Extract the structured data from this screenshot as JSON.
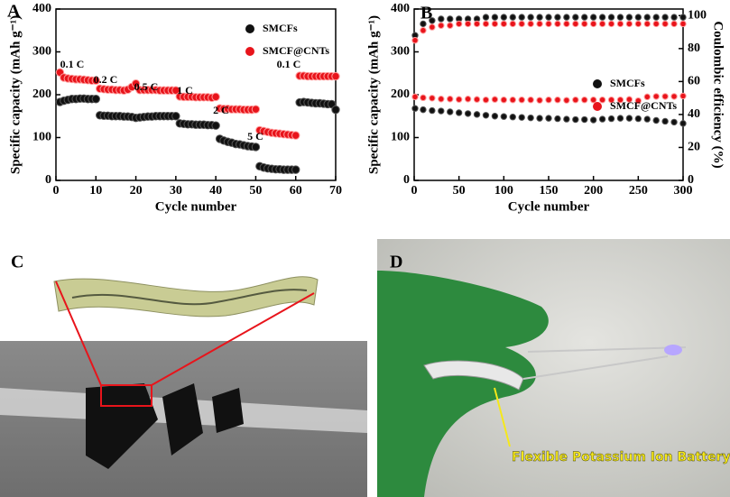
{
  "panel_labels": [
    "A",
    "B",
    "C",
    "D"
  ],
  "photo_caption": "Flexible Potassium Ion Battery",
  "chart_data": [
    {
      "type": "scatter",
      "xlabel": "Cycle number",
      "ylabel": "Specific capacity (mAh g⁻¹)",
      "xlim": [
        0,
        70
      ],
      "xticks": [
        0,
        10,
        20,
        30,
        40,
        50,
        60,
        70
      ],
      "ylim": [
        0,
        400
      ],
      "yticks": [
        0,
        100,
        200,
        300,
        400
      ],
      "legend": "upper right",
      "annotations": [
        "0.1 C",
        "0.2 C",
        "0.5 C",
        "1 C",
        "2 C",
        "5 C",
        "0.1 C"
      ],
      "x": [
        1,
        2,
        3,
        4,
        5,
        6,
        7,
        8,
        9,
        10,
        11,
        12,
        13,
        14,
        15,
        16,
        17,
        18,
        19,
        20,
        21,
        22,
        23,
        24,
        25,
        26,
        27,
        28,
        29,
        30,
        31,
        32,
        33,
        34,
        35,
        36,
        37,
        38,
        39,
        40,
        41,
        42,
        43,
        44,
        45,
        46,
        47,
        48,
        49,
        50,
        51,
        52,
        53,
        54,
        55,
        56,
        57,
        58,
        59,
        60,
        61,
        62,
        63,
        64,
        65,
        66,
        67,
        68,
        69,
        70
      ],
      "series": [
        {
          "name": "SMCFs",
          "color": "#111111",
          "values": [
            183,
            186,
            188,
            190,
            190,
            191,
            191,
            190,
            190,
            190,
            152,
            151,
            151,
            150,
            150,
            150,
            149,
            149,
            148,
            146,
            147,
            148,
            149,
            149,
            150,
            150,
            150,
            150,
            150,
            150,
            133,
            132,
            131,
            131,
            130,
            130,
            130,
            129,
            129,
            128,
            97,
            93,
            90,
            88,
            85,
            84,
            82,
            80,
            79,
            78,
            33,
            30,
            28,
            27,
            26,
            26,
            25,
            25,
            25,
            25,
            182,
            183,
            182,
            181,
            180,
            180,
            179,
            178,
            178,
            165
          ]
        },
        {
          "name": "SMCF@CNTs",
          "color": "#e8141b",
          "values": [
            252,
            240,
            238,
            237,
            236,
            236,
            235,
            234,
            233,
            233,
            214,
            213,
            212,
            212,
            211,
            211,
            210,
            212,
            218,
            226,
            211,
            211,
            211,
            211,
            211,
            210,
            210,
            210,
            210,
            210,
            196,
            195,
            195,
            195,
            194,
            194,
            194,
            194,
            193,
            195,
            168,
            167,
            167,
            166,
            166,
            166,
            165,
            165,
            165,
            166,
            117,
            115,
            113,
            111,
            110,
            109,
            108,
            107,
            106,
            105,
            244,
            244,
            243,
            243,
            243,
            243,
            243,
            243,
            243,
            243
          ]
        }
      ]
    },
    {
      "type": "scatter",
      "xlabel": "Cycle number",
      "ylabel": "Specific capacity (mAh g⁻¹)",
      "y2label": "Coulombic efficiency (%)",
      "xlim": [
        0,
        300
      ],
      "xticks": [
        0,
        50,
        100,
        150,
        200,
        250,
        300
      ],
      "ylim": [
        0,
        400
      ],
      "yticks": [
        0,
        100,
        200,
        300,
        400
      ],
      "y2lim": [
        0,
        104
      ],
      "y2ticks": [
        0,
        20,
        40,
        60,
        80,
        100
      ],
      "legend": "center right",
      "x": [
        1,
        10,
        20,
        30,
        40,
        50,
        60,
        70,
        80,
        90,
        100,
        110,
        120,
        130,
        140,
        150,
        160,
        170,
        180,
        190,
        200,
        210,
        220,
        230,
        240,
        250,
        260,
        270,
        280,
        290,
        300
      ],
      "series": [
        {
          "name": "SMCFs",
          "color": "#111111",
          "values": [
            168,
            165,
            163,
            162,
            160,
            158,
            156,
            154,
            152,
            150,
            149,
            148,
            147,
            146,
            145,
            145,
            144,
            143,
            142,
            142,
            141,
            143,
            144,
            145,
            145,
            144,
            143,
            140,
            138,
            136,
            133
          ]
        },
        {
          "name": "SMCF@CNTs",
          "color": "#e8141b",
          "values": [
            195,
            193,
            192,
            190,
            190,
            189,
            190,
            189,
            188,
            189,
            188,
            188,
            188,
            188,
            187,
            188,
            188,
            187,
            188,
            188,
            188,
            188,
            188,
            188,
            189,
            186,
            195,
            196,
            196,
            196,
            197
          ]
        },
        {
          "color": "#111111",
          "axis": "y2",
          "values": [
            88,
            95,
            97,
            98,
            98,
            98,
            98,
            98,
            99,
            99,
            99,
            99,
            99,
            99,
            99,
            99,
            99,
            99,
            99,
            99,
            99,
            99,
            99,
            99,
            99,
            99,
            99,
            99,
            99,
            99,
            99
          ]
        },
        {
          "color": "#e8141b",
          "axis": "y2",
          "values": [
            85,
            91,
            93,
            94,
            94,
            95,
            95,
            95,
            95,
            95,
            95,
            95,
            95,
            95,
            95,
            95,
            95,
            95,
            95,
            95,
            95,
            95,
            95,
            95,
            95,
            95,
            95,
            95,
            95,
            95,
            95
          ]
        }
      ]
    }
  ]
}
